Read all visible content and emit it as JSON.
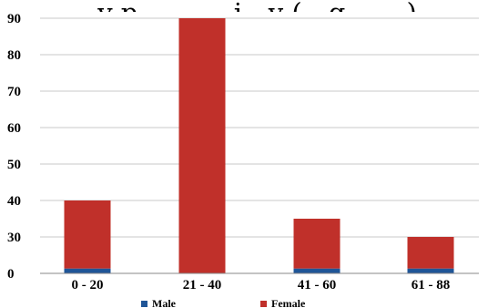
{
  "chart_data": {
    "type": "bar",
    "stacked": true,
    "title": "…y p… … …j…y (…g… …)",
    "categories": [
      "0 - 20",
      "21 - 40",
      "41 - 60",
      "61 - 88"
    ],
    "series": [
      {
        "name": "Male",
        "values": [
          4,
          0,
          4,
          4
        ],
        "color": "#1f5597"
      },
      {
        "name": "Female",
        "values": [
          36,
          90,
          31,
          26
        ],
        "color": "#c0302a"
      }
    ],
    "y_ticks": [
      0,
      30,
      40,
      50,
      60,
      70,
      80,
      90
    ],
    "ylim": [
      0,
      90
    ],
    "grid": true,
    "legend": "bottom"
  }
}
